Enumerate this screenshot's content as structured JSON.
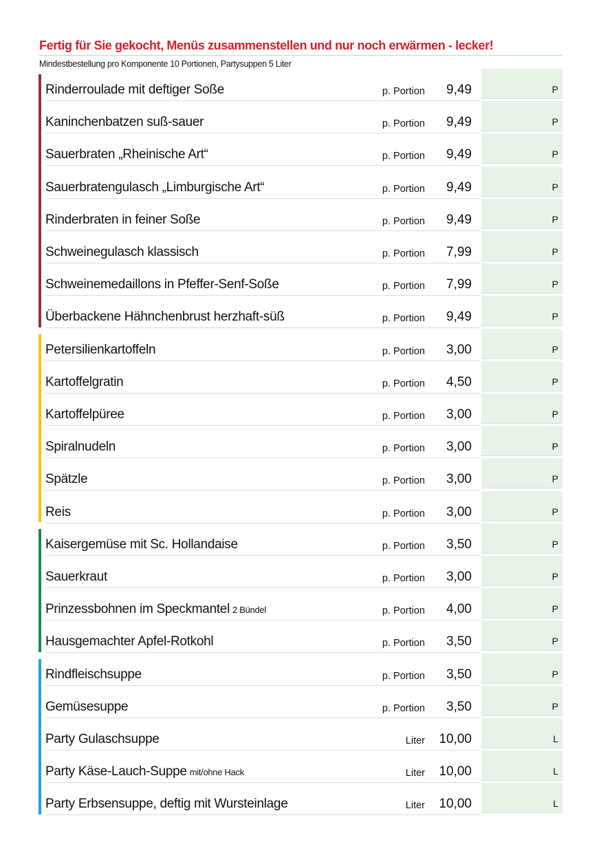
{
  "header": {
    "title": "Fertig für Sie gekocht, Menüs zusammenstellen und nur noch erwärmen - lecker!",
    "subtitle": "Mindestbestellung pro Komponente 10 Portionen, Partysuppen 5 Liter"
  },
  "sections": [
    {
      "color": "#9b2d30",
      "items": [
        {
          "name": "Rinderroulade mit deftiger Soße",
          "unit": "p. Portion",
          "price": "9,49",
          "code": "P"
        },
        {
          "name": "Kaninchenbatzen suß-sauer",
          "unit": "p. Portion",
          "price": "9,49",
          "code": "P"
        },
        {
          "name": "Sauerbraten „Rheinische Art“",
          "unit": "p. Portion",
          "price": "9,49",
          "code": "P"
        },
        {
          "name": "Sauerbratengulasch „Limburgische Art“",
          "unit": "p. Portion",
          "price": "9,49",
          "code": "P"
        },
        {
          "name": "Rinderbraten in feiner Soße",
          "unit": "p. Portion",
          "price": "9,49",
          "code": "P"
        },
        {
          "name": "Schweinegulasch klassisch",
          "unit": "p. Portion",
          "price": "7,99",
          "code": "P"
        },
        {
          "name": "Schweinemedaillons in Pfeffer-Senf-Soße",
          "unit": "p. Portion",
          "price": "7,99",
          "code": "P"
        },
        {
          "name": "Überbackene Hähnchenbrust herzhaft-süß",
          "unit": "p. Portion",
          "price": "9,49",
          "code": "P"
        }
      ]
    },
    {
      "color": "#f6c300",
      "items": [
        {
          "name": "Petersilienkartoffeln",
          "unit": "p. Portion",
          "price": "3,00",
          "code": "P"
        },
        {
          "name": "Kartoffelgratin",
          "unit": "p. Portion",
          "price": "4,50",
          "code": "P"
        },
        {
          "name": "Kartoffelpüree",
          "unit": "p. Portion",
          "price": "3,00",
          "code": "P"
        },
        {
          "name": "Spiralnudeln",
          "unit": "p. Portion",
          "price": "3,00",
          "code": "P"
        },
        {
          "name": "Spätzle",
          "unit": "p. Portion",
          "price": "3,00",
          "code": "P"
        },
        {
          "name": "Reis",
          "unit": "p. Portion",
          "price": "3,00",
          "code": "P"
        }
      ]
    },
    {
      "color": "#1d8a4b",
      "items": [
        {
          "name": "Kaisergemüse mit Sc. Hollandaise",
          "unit": "p. Portion",
          "price": "3,50",
          "code": "P"
        },
        {
          "name": "Sauerkraut",
          "unit": "p. Portion",
          "price": "3,00",
          "code": "P"
        },
        {
          "name": "Prinzessbohnen im Speckmantel",
          "note": "2 Bündel",
          "unit": "p. Portion",
          "price": "4,00",
          "code": "P"
        },
        {
          "name": "Hausgemachter Apfel-Rotkohl",
          "unit": "p. Portion",
          "price": "3,50",
          "code": "P"
        }
      ]
    },
    {
      "color": "#1ea2e2",
      "items": [
        {
          "name": "Rindfleischsuppe",
          "unit": "p. Portion",
          "price": "3,50",
          "code": "P"
        },
        {
          "name": "Gemüsesuppe",
          "unit": "p. Portion",
          "price": "3,50",
          "code": "P"
        },
        {
          "name": "Party Gulaschsuppe",
          "unit": "Liter",
          "price": "10,00",
          "code": "L"
        },
        {
          "name": "Party Käse-Lauch-Suppe",
          "note": "mit/ohne Hack",
          "unit": "Liter",
          "price": "10,00",
          "code": "L"
        },
        {
          "name": "Party Erbsensuppe, deftig mit Wursteinlage",
          "unit": "Liter",
          "price": "10,00",
          "code": "L"
        }
      ]
    }
  ]
}
